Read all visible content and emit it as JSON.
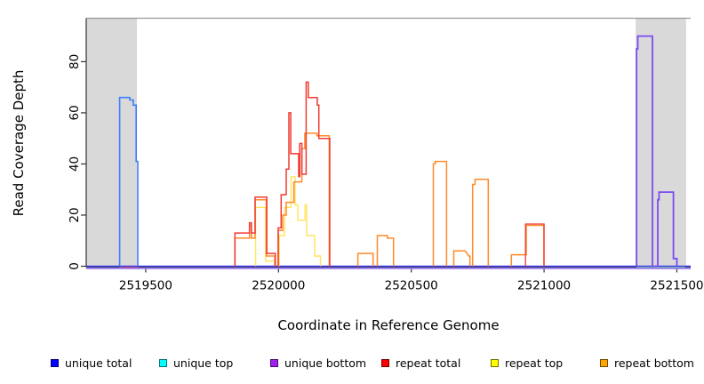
{
  "chart_data": {
    "type": "line",
    "line_style": "step",
    "title": "",
    "xlabel": "Coordinate in Reference Genome",
    "ylabel": "Read Coverage Depth",
    "xlim": [
      2519276,
      2521552
    ],
    "ylim": [
      0,
      97
    ],
    "grid": false,
    "x_ticks": [
      {
        "v": 2519500,
        "label": "2519500"
      },
      {
        "v": 2520000,
        "label": "2520000"
      },
      {
        "v": 2520500,
        "label": "2520500"
      },
      {
        "v": 2521000,
        "label": "2521000"
      },
      {
        "v": 2521500,
        "label": "2521500"
      }
    ],
    "y_ticks": [
      {
        "v": 0,
        "label": "0"
      },
      {
        "v": 20,
        "label": "20"
      },
      {
        "v": 40,
        "label": "40"
      },
      {
        "v": 60,
        "label": "60"
      },
      {
        "v": 80,
        "label": "80"
      }
    ],
    "colors": {
      "shade": "#d9d9d9",
      "top_border": "#999999",
      "axis": "#333333"
    },
    "shaded_regions": [
      {
        "from": 2519276,
        "to": 2519467
      },
      {
        "from": 2521345,
        "to": 2521535
      }
    ],
    "legend": [
      {
        "label": "unique total",
        "color": "#0000ff"
      },
      {
        "label": "unique top",
        "color": "#00ffff"
      },
      {
        "label": "unique bottom",
        "color": "#a020f0"
      },
      {
        "label": "repeat total",
        "color": "#ff0000"
      },
      {
        "label": "repeat top",
        "color": "#ffff00"
      },
      {
        "label": "repeat bottom",
        "color": "#ffa500"
      }
    ],
    "series": [
      {
        "name": "repeat total (baseline under left peak)",
        "color": "#f04a42",
        "dy": 1.5,
        "w": 1.6,
        "points": [
          [
            2519402,
            0
          ],
          [
            2519470,
            0
          ]
        ]
      },
      {
        "name": "unique top (right baseline segment)",
        "color": "#7ed87e",
        "dy": 1.0,
        "w": 1.4,
        "points": [
          [
            2521348,
            0
          ],
          [
            2521532,
            0
          ]
        ]
      },
      {
        "name": "unique bottom (baseline)",
        "color": "#9b7df2",
        "dy": 2.5,
        "w": 1.8,
        "points": [
          [
            2519276,
            0
          ],
          [
            2521552,
            0
          ]
        ]
      },
      {
        "name": "unique total (baseline)",
        "color": "#3d3bf3",
        "dy": 0,
        "w": 1.6,
        "points": [
          [
            2519276,
            0
          ],
          [
            2521552,
            0
          ]
        ]
      },
      {
        "name": "repeat top (cluster A)",
        "color": "#ffe45e",
        "dy": 0,
        "w": 1.4,
        "points": [
          [
            2519914,
            0
          ],
          [
            2519914,
            23
          ],
          [
            2519951,
            23
          ],
          [
            2519951,
            2
          ],
          [
            2519986,
            2
          ],
          [
            2519986,
            0
          ]
        ]
      },
      {
        "name": "repeat top (main cluster)",
        "color": "#ffe45e",
        "dy": 0,
        "w": 1.4,
        "points": [
          [
            2520003,
            0
          ],
          [
            2520003,
            12
          ],
          [
            2520023,
            12
          ],
          [
            2520023,
            23
          ],
          [
            2520047,
            23
          ],
          [
            2520047,
            35
          ],
          [
            2520063,
            35
          ],
          [
            2520063,
            24
          ],
          [
            2520073,
            24
          ],
          [
            2520073,
            18
          ],
          [
            2520100,
            18
          ],
          [
            2520100,
            24
          ],
          [
            2520106,
            24
          ],
          [
            2520106,
            12
          ],
          [
            2520136,
            12
          ],
          [
            2520136,
            4
          ],
          [
            2520158,
            4
          ],
          [
            2520158,
            0
          ]
        ]
      },
      {
        "name": "repeat bottom (cluster A)",
        "color": "#ff8a2a",
        "dy": 0,
        "w": 1.5,
        "points": [
          [
            2519836,
            0
          ],
          [
            2519836,
            11
          ],
          [
            2519891,
            11
          ],
          [
            2519891,
            16
          ],
          [
            2519898,
            16
          ],
          [
            2519898,
            11
          ],
          [
            2519912,
            11
          ],
          [
            2519912,
            26
          ],
          [
            2519954,
            26
          ],
          [
            2519954,
            4
          ],
          [
            2519986,
            4
          ],
          [
            2519986,
            0
          ]
        ]
      },
      {
        "name": "repeat bottom (main cluster)",
        "color": "#ff8a2a",
        "dy": 0,
        "w": 1.5,
        "points": [
          [
            2519999,
            0
          ],
          [
            2519999,
            14
          ],
          [
            2520016,
            14
          ],
          [
            2520016,
            20
          ],
          [
            2520029,
            20
          ],
          [
            2520029,
            25
          ],
          [
            2520058,
            25
          ],
          [
            2520058,
            33
          ],
          [
            2520088,
            33
          ],
          [
            2520088,
            46
          ],
          [
            2520099,
            46
          ],
          [
            2520099,
            52
          ],
          [
            2520145,
            52
          ],
          [
            2520145,
            51
          ],
          [
            2520191,
            51
          ],
          [
            2520191,
            0
          ]
        ]
      },
      {
        "name": "repeat bottom (block 2520300)",
        "color": "#ff8a2a",
        "dy": 0,
        "w": 1.5,
        "points": [
          [
            2520299,
            0
          ],
          [
            2520299,
            5
          ],
          [
            2520356,
            5
          ],
          [
            2520356,
            0
          ]
        ]
      },
      {
        "name": "repeat bottom (block 2520373)",
        "color": "#ff8a2a",
        "dy": 0,
        "w": 1.5,
        "points": [
          [
            2520372,
            0
          ],
          [
            2520372,
            12
          ],
          [
            2520410,
            12
          ],
          [
            2520410,
            11
          ],
          [
            2520433,
            11
          ],
          [
            2520433,
            0
          ]
        ]
      },
      {
        "name": "repeat bottom (block 2520585 h41)",
        "color": "#ff8a2a",
        "dy": 0,
        "w": 1.5,
        "points": [
          [
            2520583,
            0
          ],
          [
            2520583,
            40
          ],
          [
            2520590,
            40
          ],
          [
            2520590,
            41
          ],
          [
            2520633,
            41
          ],
          [
            2520633,
            0
          ]
        ]
      },
      {
        "name": "repeat bottom (bump 2520660)",
        "color": "#ff8a2a",
        "dy": 0,
        "w": 1.5,
        "points": [
          [
            2520660,
            0
          ],
          [
            2520660,
            6
          ],
          [
            2520703,
            6
          ],
          [
            2520710,
            5
          ],
          [
            2520716,
            4
          ],
          [
            2520721,
            4
          ],
          [
            2520721,
            0
          ]
        ]
      },
      {
        "name": "repeat bottom (block 2520732 h34)",
        "color": "#ff8a2a",
        "dy": 0,
        "w": 1.5,
        "points": [
          [
            2520731,
            0
          ],
          [
            2520731,
            32
          ],
          [
            2520740,
            32
          ],
          [
            2520740,
            34
          ],
          [
            2520790,
            34
          ],
          [
            2520790,
            0
          ]
        ]
      },
      {
        "name": "repeat bottom (block 2520933 h16)",
        "color": "#ff8a2a",
        "dy": 0,
        "w": 1.5,
        "points": [
          [
            2520877,
            0
          ],
          [
            2520877,
            4.5
          ],
          [
            2520933,
            4.5
          ],
          [
            2520933,
            16
          ],
          [
            2520999,
            16
          ],
          [
            2520999,
            0
          ]
        ]
      },
      {
        "name": "repeat total (block 2520933 h16.5)",
        "color": "#ef3b33",
        "dy": 0,
        "w": 1.3,
        "points": [
          [
            2520930,
            0
          ],
          [
            2520930,
            16.5
          ],
          [
            2521000,
            16.5
          ],
          [
            2521000,
            0
          ]
        ]
      },
      {
        "name": "repeat total (cluster A)",
        "color": "#ef3b33",
        "dy": 0,
        "w": 1.5,
        "points": [
          [
            2519836,
            0
          ],
          [
            2519836,
            13
          ],
          [
            2519891,
            13
          ],
          [
            2519891,
            17
          ],
          [
            2519898,
            17
          ],
          [
            2519898,
            13
          ],
          [
            2519912,
            13
          ],
          [
            2519912,
            27
          ],
          [
            2519956,
            27
          ],
          [
            2519956,
            5
          ],
          [
            2519988,
            5
          ],
          [
            2519988,
            0
          ]
        ]
      },
      {
        "name": "repeat total (main cluster)",
        "color": "#ef3b33",
        "dy": 0,
        "w": 1.5,
        "points": [
          [
            2519999,
            0
          ],
          [
            2519999,
            15
          ],
          [
            2520010,
            15
          ],
          [
            2520010,
            28
          ],
          [
            2520029,
            28
          ],
          [
            2520029,
            38
          ],
          [
            2520039,
            38
          ],
          [
            2520039,
            60
          ],
          [
            2520046,
            60
          ],
          [
            2520046,
            44
          ],
          [
            2520076,
            44
          ],
          [
            2520076,
            35
          ],
          [
            2520080,
            35
          ],
          [
            2520080,
            48
          ],
          [
            2520088,
            48
          ],
          [
            2520088,
            36
          ],
          [
            2520104,
            36
          ],
          [
            2520104,
            72
          ],
          [
            2520112,
            72
          ],
          [
            2520112,
            66
          ],
          [
            2520146,
            66
          ],
          [
            2520146,
            63
          ],
          [
            2520152,
            63
          ],
          [
            2520152,
            50
          ],
          [
            2520193,
            50
          ],
          [
            2520193,
            0
          ]
        ]
      },
      {
        "name": "unique total (left peak h66)",
        "color": "#3c7dfc",
        "dy": 0,
        "w": 1.6,
        "points": [
          [
            2519402,
            0
          ],
          [
            2519402,
            66
          ],
          [
            2519440,
            66
          ],
          [
            2519440,
            65
          ],
          [
            2519453,
            65
          ],
          [
            2519453,
            63
          ],
          [
            2519464,
            63
          ],
          [
            2519464,
            41
          ],
          [
            2519470,
            41
          ],
          [
            2519470,
            0
          ]
        ]
      },
      {
        "name": "unique bottom (right peaks h90 h29)",
        "color": "#7a4bf2",
        "dy": 0,
        "w": 1.8,
        "points": [
          [
            2521348,
            0
          ],
          [
            2521348,
            85
          ],
          [
            2521353,
            85
          ],
          [
            2521353,
            90
          ],
          [
            2521408,
            90
          ],
          [
            2521408,
            0
          ],
          [
            2521428,
            0
          ],
          [
            2521428,
            26
          ],
          [
            2521433,
            26
          ],
          [
            2521433,
            29
          ],
          [
            2521487,
            29
          ],
          [
            2521487,
            3
          ],
          [
            2521500,
            3
          ],
          [
            2521500,
            0
          ]
        ]
      }
    ]
  }
}
